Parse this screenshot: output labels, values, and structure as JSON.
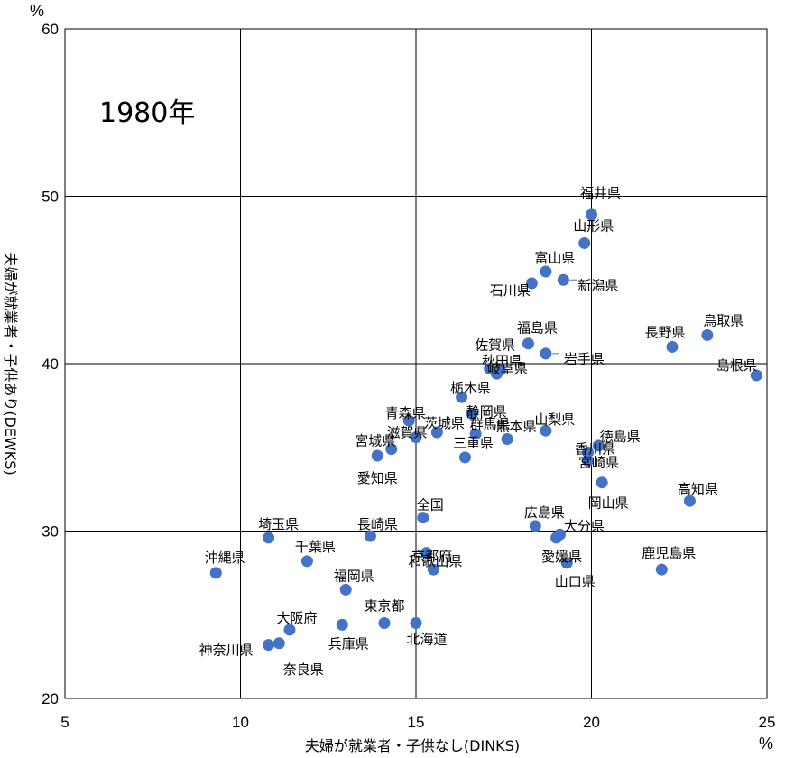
{
  "chart_data": {
    "type": "scatter",
    "title": "1980年",
    "xlabel": "夫婦が就業者・子供なし(DINKS)",
    "ylabel": "夫婦が就業者・子供あり(DEWKS)",
    "x_unit": "%",
    "y_unit": "%",
    "xlim": [
      5,
      25
    ],
    "ylim": [
      20,
      60
    ],
    "x_ticks": [
      "5",
      "10",
      "15",
      "20",
      "25"
    ],
    "y_ticks": [
      "20",
      "30",
      "40",
      "50",
      "60"
    ],
    "grid": true,
    "points": [
      {
        "name": "福井県",
        "x": 20.0,
        "y": 48.9
      },
      {
        "name": "山形県",
        "x": 19.8,
        "y": 47.2
      },
      {
        "name": "富山県",
        "x": 18.7,
        "y": 45.5
      },
      {
        "name": "新潟県",
        "x": 19.2,
        "y": 45.0
      },
      {
        "name": "石川県",
        "x": 18.3,
        "y": 44.8
      },
      {
        "name": "福島県",
        "x": 18.2,
        "y": 41.2
      },
      {
        "name": "岩手県",
        "x": 18.7,
        "y": 40.6
      },
      {
        "name": "鳥取県",
        "x": 23.3,
        "y": 41.7
      },
      {
        "name": "長野県",
        "x": 22.3,
        "y": 41.0
      },
      {
        "name": "島根県",
        "x": 24.7,
        "y": 39.3
      },
      {
        "name": "佐賀県",
        "x": 17.1,
        "y": 39.7
      },
      {
        "name": "秋田県",
        "x": 17.3,
        "y": 39.4
      },
      {
        "name": "岐阜県",
        "x": 17.4,
        "y": 39.6
      },
      {
        "name": "栃木県",
        "x": 16.3,
        "y": 38.0
      },
      {
        "name": "静岡県",
        "x": 16.6,
        "y": 37.0
      },
      {
        "name": "青森県",
        "x": 14.8,
        "y": 36.6
      },
      {
        "name": "茨城県",
        "x": 15.6,
        "y": 35.9
      },
      {
        "name": "滋賀県",
        "x": 15.0,
        "y": 35.6
      },
      {
        "name": "群馬県",
        "x": 16.7,
        "y": 35.8
      },
      {
        "name": "熊本県",
        "x": 17.6,
        "y": 35.5
      },
      {
        "name": "山梨県",
        "x": 18.7,
        "y": 36.0
      },
      {
        "name": "徳島県",
        "x": 20.2,
        "y": 35.1
      },
      {
        "name": "香川県",
        "x": 19.9,
        "y": 34.7
      },
      {
        "name": "宮崎県",
        "x": 19.9,
        "y": 34.2
      },
      {
        "name": "宮城県",
        "x": 14.3,
        "y": 34.9
      },
      {
        "name": "三重県",
        "x": 16.4,
        "y": 34.4
      },
      {
        "name": "愛知県",
        "x": 13.9,
        "y": 34.5
      },
      {
        "name": "岡山県",
        "x": 20.3,
        "y": 32.9
      },
      {
        "name": "高知県",
        "x": 22.8,
        "y": 31.8
      },
      {
        "name": "全国",
        "x": 15.2,
        "y": 30.8
      },
      {
        "name": "広島県",
        "x": 18.4,
        "y": 30.3
      },
      {
        "name": "大分県",
        "x": 19.1,
        "y": 29.8
      },
      {
        "name": "愛媛県",
        "x": 19.0,
        "y": 29.6
      },
      {
        "name": "埼玉県",
        "x": 10.8,
        "y": 29.6
      },
      {
        "name": "長崎県",
        "x": 13.7,
        "y": 29.7
      },
      {
        "name": "千葉県",
        "x": 11.9,
        "y": 28.2
      },
      {
        "name": "京都府",
        "x": 15.3,
        "y": 28.7
      },
      {
        "name": "和歌山県",
        "x": 15.5,
        "y": 27.7
      },
      {
        "name": "山口県",
        "x": 19.3,
        "y": 28.1
      },
      {
        "name": "鹿児島県",
        "x": 22.0,
        "y": 27.7
      },
      {
        "name": "沖縄県",
        "x": 9.3,
        "y": 27.5
      },
      {
        "name": "福岡県",
        "x": 13.0,
        "y": 26.5
      },
      {
        "name": "大阪府",
        "x": 11.4,
        "y": 24.1
      },
      {
        "name": "東京都",
        "x": 14.1,
        "y": 24.5
      },
      {
        "name": "兵庫県",
        "x": 12.9,
        "y": 24.4
      },
      {
        "name": "北海道",
        "x": 15.0,
        "y": 24.5
      },
      {
        "name": "神奈川県",
        "x": 10.8,
        "y": 23.2
      },
      {
        "name": "奈良県",
        "x": 11.1,
        "y": 23.3
      }
    ]
  }
}
